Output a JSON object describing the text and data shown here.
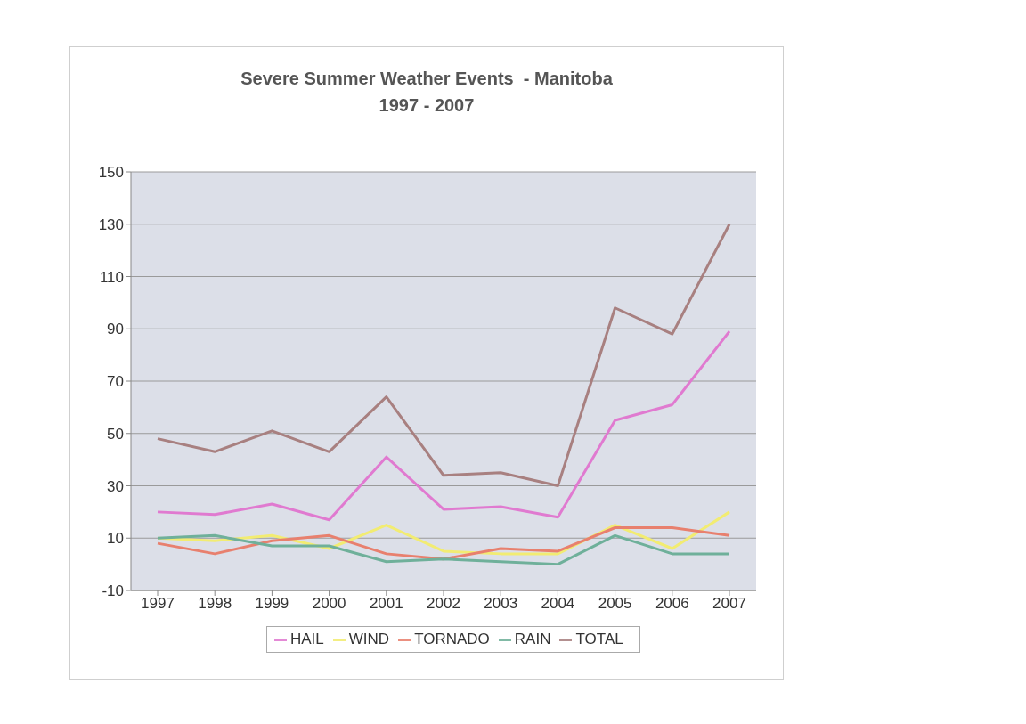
{
  "chart_data": {
    "type": "line",
    "title": "Severe Summer Weather Events  - Manitoba",
    "subtitle": "1997 - 2007",
    "categories": [
      "1997",
      "1998",
      "1999",
      "2000",
      "2001",
      "2002",
      "2003",
      "2004",
      "2005",
      "2006",
      "2007"
    ],
    "series": [
      {
        "name": "HAIL",
        "color": "#e07ad0",
        "values": [
          20,
          19,
          23,
          17,
          41,
          21,
          22,
          18,
          55,
          61,
          89
        ]
      },
      {
        "name": "WIND",
        "color": "#f2ec72",
        "values": [
          10,
          9,
          11,
          6,
          15,
          5,
          4,
          4,
          15,
          6,
          20
        ]
      },
      {
        "name": "TORNADO",
        "color": "#e8806e",
        "values": [
          8,
          4,
          9,
          11,
          4,
          2,
          6,
          5,
          14,
          14,
          11
        ]
      },
      {
        "name": "RAIN",
        "color": "#6fb09a",
        "values": [
          10,
          11,
          7,
          7,
          1,
          2,
          1,
          0,
          11,
          4,
          4
        ]
      },
      {
        "name": "TOTAL",
        "color": "#a88080",
        "values": [
          48,
          43,
          51,
          43,
          64,
          34,
          35,
          30,
          98,
          88,
          130
        ]
      }
    ],
    "ylim": [
      -10,
      150
    ],
    "yticks": [
      -10,
      10,
      30,
      50,
      70,
      90,
      110,
      130,
      150
    ],
    "grid": "y",
    "legend": "bottom",
    "marker": "none",
    "line_style": "solid"
  }
}
